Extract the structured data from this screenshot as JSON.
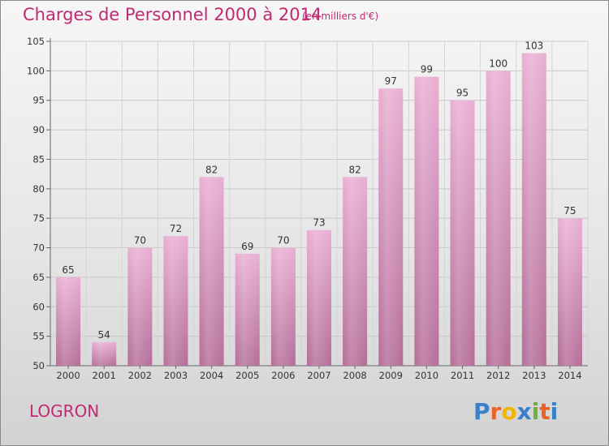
{
  "header": {
    "title": "Charges de Personnel 2000 à 2014",
    "subtitle": "(en milliers d'€)"
  },
  "footer": {
    "commune": "LOGRON",
    "brand": "Proxiti"
  },
  "colors": {
    "title": "#c02a73",
    "bar_light": "#e9aed3",
    "bar_dark": "#b46d98",
    "logo_letters": [
      "#3a7fc9",
      "#e8632a",
      "#f3b400",
      "#3a7fc9",
      "#6ab33a",
      "#e8632a",
      "#3a7fc9"
    ]
  },
  "chart_data": {
    "type": "bar",
    "title": "Charges de Personnel 2000 à 2014",
    "subtitle": "(en milliers d'€)",
    "xlabel": "",
    "ylabel": "",
    "categories": [
      "2000",
      "2001",
      "2002",
      "2003",
      "2004",
      "2005",
      "2006",
      "2007",
      "2008",
      "2009",
      "2010",
      "2011",
      "2012",
      "2013",
      "2014"
    ],
    "values": [
      65,
      54,
      70,
      72,
      82,
      69,
      70,
      73,
      82,
      97,
      99,
      95,
      100,
      103,
      75
    ],
    "ylim": [
      50,
      105
    ],
    "yticks": [
      50,
      55,
      60,
      65,
      70,
      75,
      80,
      85,
      90,
      95,
      100,
      105
    ],
    "grid": true
  }
}
